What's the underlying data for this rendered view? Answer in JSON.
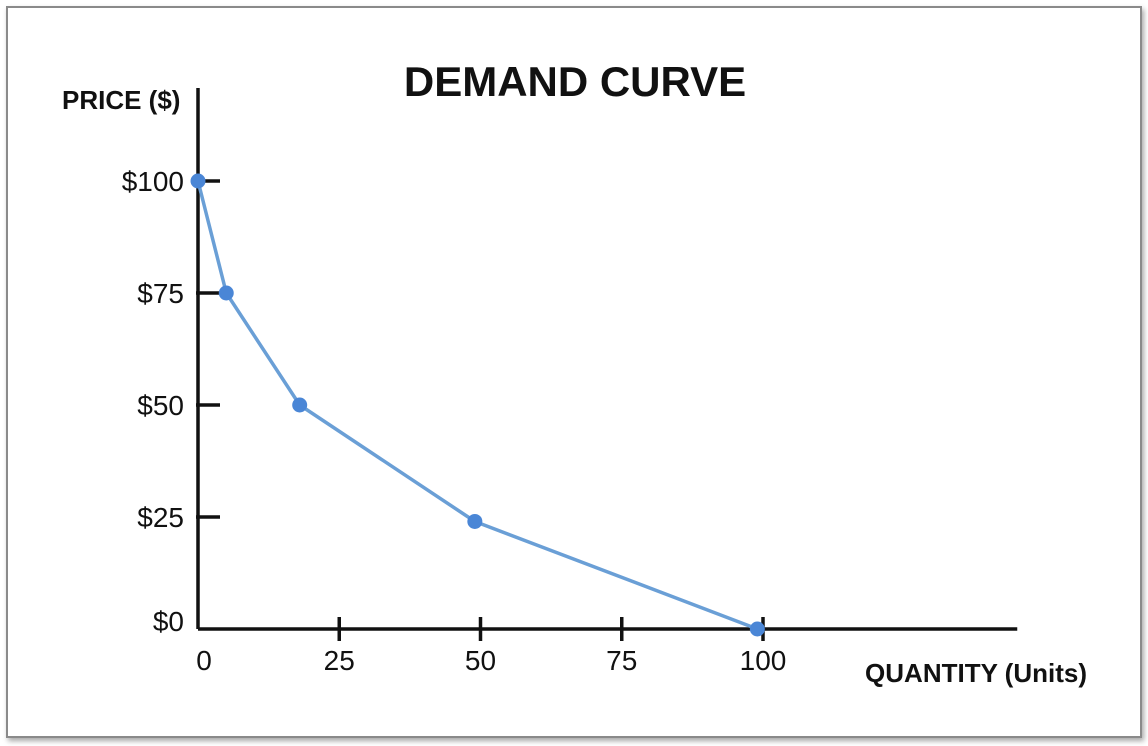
{
  "chart_data": {
    "type": "line",
    "title": "DEMAND CURVE",
    "xlabel": "QUANTITY (Units)",
    "ylabel": "PRICE ($)",
    "x_ticks": [
      0,
      25,
      50,
      75,
      100
    ],
    "x_tick_labels": [
      "0",
      "25",
      "50",
      "75",
      "100"
    ],
    "y_ticks": [
      0,
      25,
      50,
      75,
      100
    ],
    "y_tick_labels": [
      "$0",
      "$25",
      "$50",
      "$75",
      "$100"
    ],
    "xlim": [
      0,
      145
    ],
    "ylim": [
      0,
      100
    ],
    "series": [
      {
        "points": [
          {
            "x": 0,
            "y": 100
          },
          {
            "x": 5,
            "y": 75
          },
          {
            "x": 18,
            "y": 50
          },
          {
            "x": 49,
            "y": 24
          },
          {
            "x": 99,
            "y": 0
          }
        ],
        "color": "#4a86d6",
        "line_color": "#6a9fd6"
      }
    ],
    "grid": false,
    "axis_color": "#111111"
  }
}
